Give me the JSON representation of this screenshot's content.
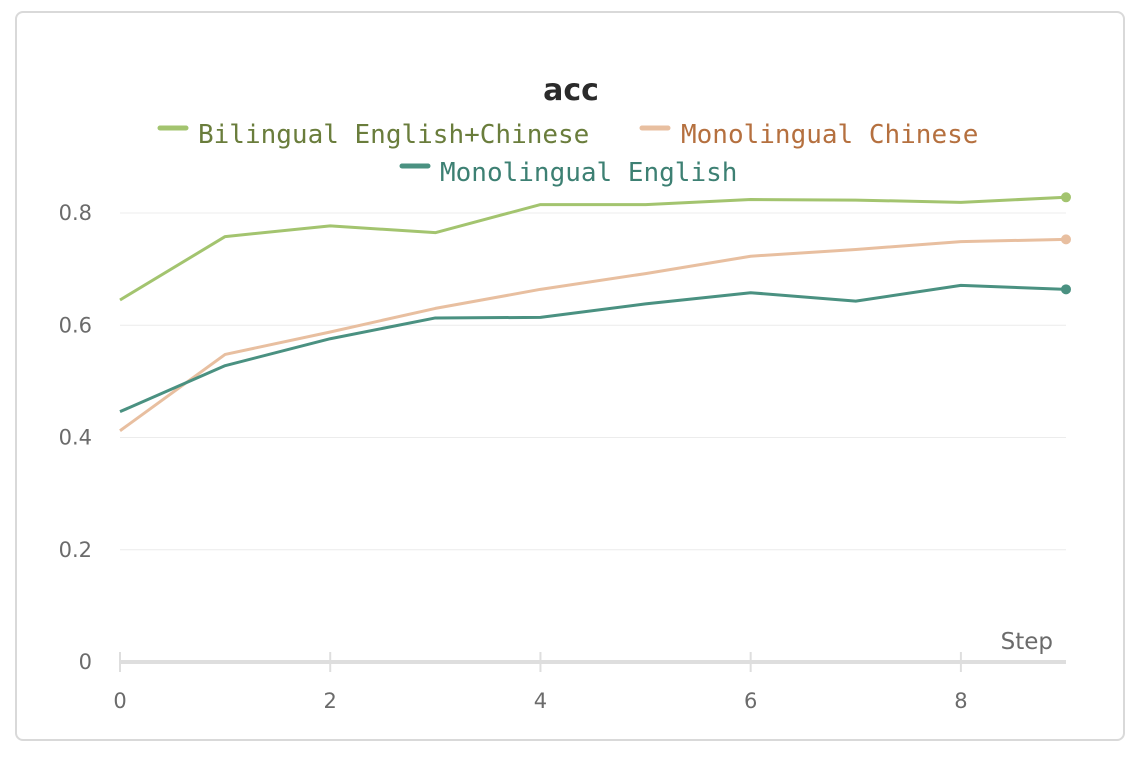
{
  "chart_data": {
    "type": "line",
    "title": "acc",
    "xlabel": "Step",
    "ylabel": "",
    "xlim": [
      0,
      9
    ],
    "ylim": [
      0,
      0.9
    ],
    "x_ticks": [
      0,
      2,
      4,
      6,
      8
    ],
    "y_ticks": [
      0,
      0.2,
      0.4,
      0.6,
      0.8
    ],
    "x_tick_labels": [
      "0",
      "2",
      "4",
      "6",
      "8"
    ],
    "y_tick_labels": [
      "0",
      "0.2",
      "0.4",
      "0.6",
      "0.8"
    ],
    "grid": true,
    "legend_position": "top-center",
    "x": [
      0,
      1,
      2,
      3,
      4,
      5,
      6,
      7,
      8,
      9
    ],
    "series": [
      {
        "name": "Bilingual English+Chinese",
        "color": "#a3c46f",
        "text_color": "#6a7d3c",
        "values": [
          0.645,
          0.758,
          0.777,
          0.765,
          0.815,
          0.815,
          0.824,
          0.823,
          0.819,
          0.828
        ]
      },
      {
        "name": "Monolingual Chinese",
        "color": "#e8bfa0",
        "text_color": "#b5703f",
        "values": [
          0.412,
          0.548,
          0.588,
          0.63,
          0.664,
          0.692,
          0.723,
          0.735,
          0.749,
          0.753
        ]
      },
      {
        "name": "Monolingual English",
        "color": "#4a9181",
        "text_color": "#3d8073",
        "values": [
          0.446,
          0.528,
          0.576,
          0.613,
          0.614,
          0.638,
          0.658,
          0.643,
          0.671,
          0.664
        ]
      }
    ]
  }
}
